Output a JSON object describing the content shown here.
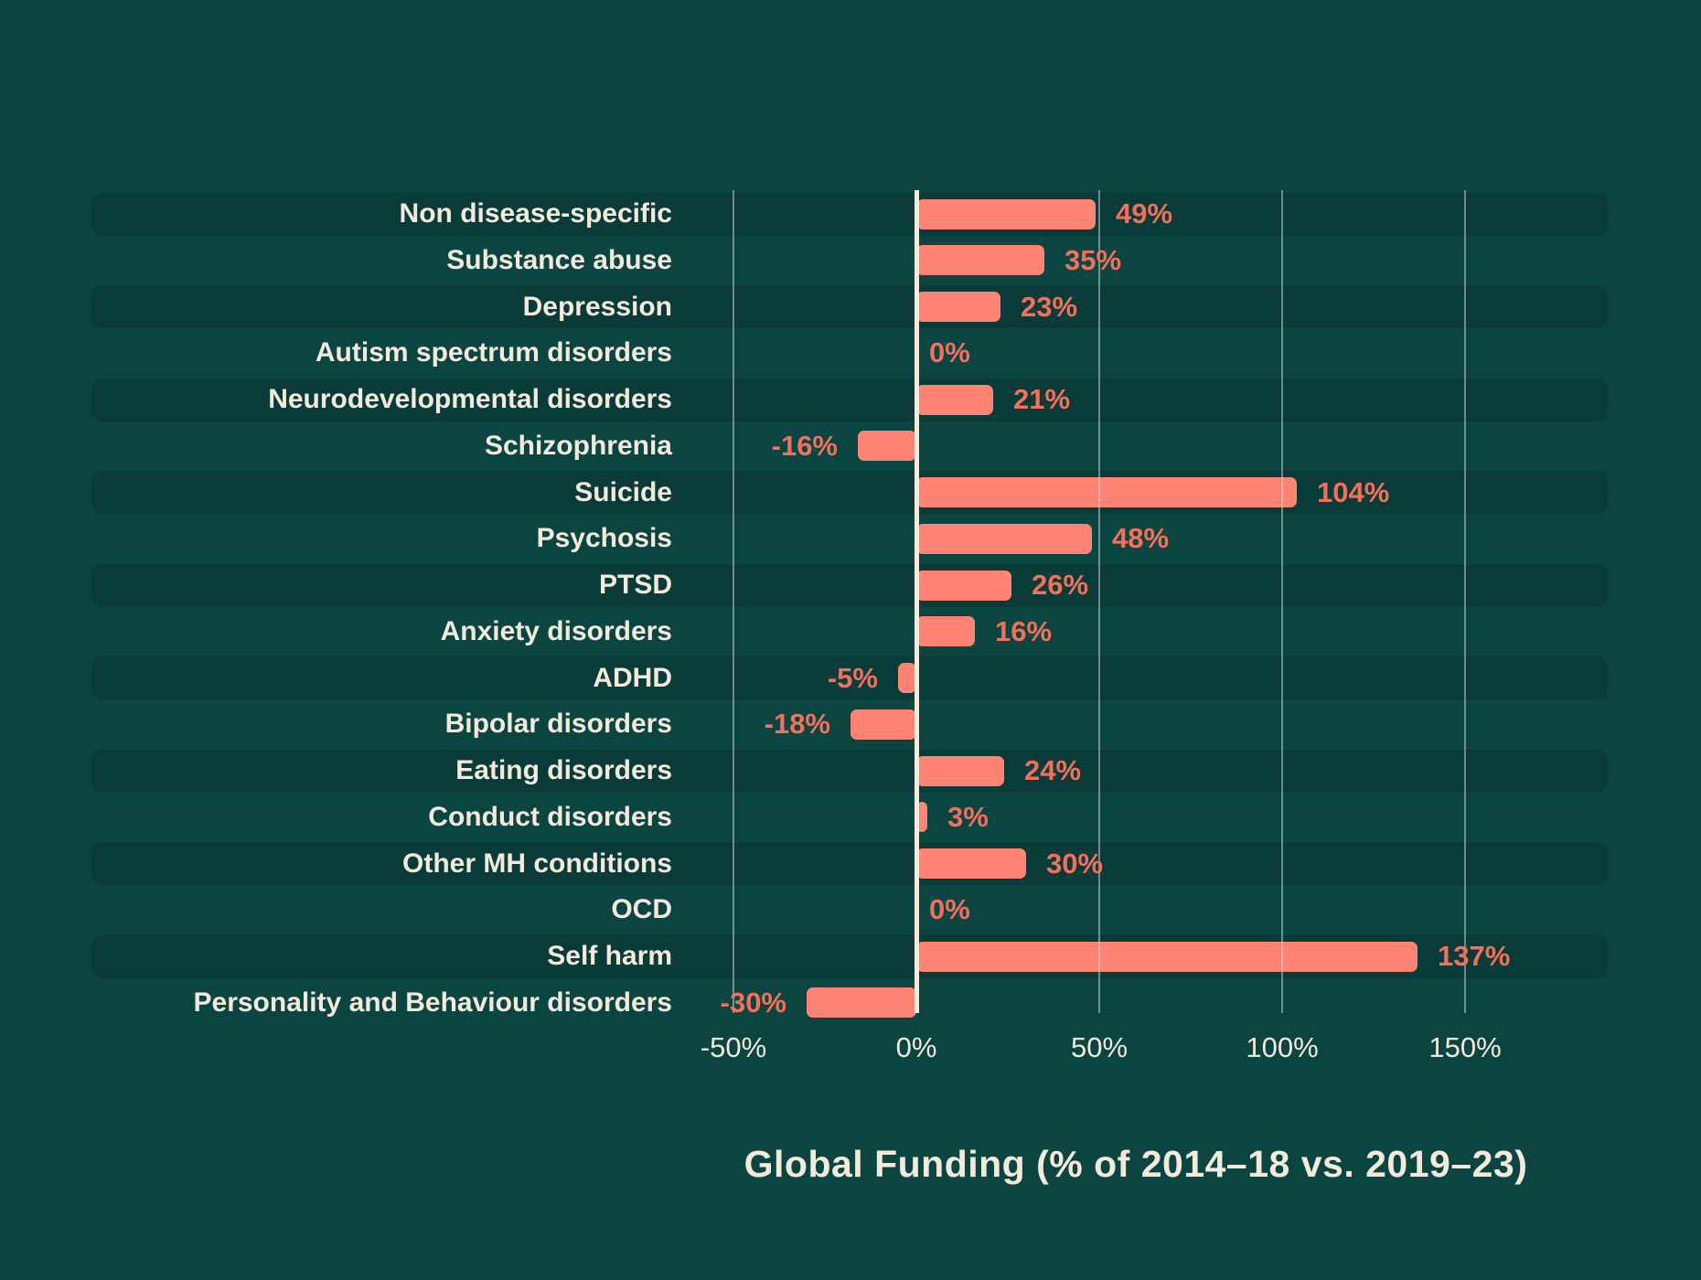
{
  "title": "Global Funding  (% of 2014–18 vs. 2019–23)",
  "colors": {
    "background": "#0B4541",
    "row_stripe": "#093B38",
    "bar": "#FF8473",
    "value_label": "#F4705C",
    "text": "#F3EADC",
    "gridline": "rgba(213,226,221,0.50)",
    "zero_line": "#F4ECDE"
  },
  "chart_data": {
    "type": "bar",
    "orientation": "horizontal",
    "title": "Global Funding  (% of 2014–18 vs. 2019–23)",
    "xlabel": "",
    "ylabel": "",
    "grid": "vertical",
    "legend": "none",
    "xlim": [
      -60,
      215
    ],
    "x_tick_values": [
      -50,
      0,
      50,
      100,
      150
    ],
    "x_tick_labels": [
      "-50%",
      "0%",
      "50%",
      "100%",
      "150%"
    ],
    "categories": [
      "Non disease-specific",
      "Substance abuse",
      "Depression",
      "Autism spectrum disorders",
      "Neurodevelopmental disorders",
      "Schizophrenia",
      "Suicide",
      "Psychosis",
      "PTSD",
      "Anxiety disorders",
      "ADHD",
      "Bipolar disorders",
      "Eating disorders",
      "Conduct disorders",
      "Other MH conditions",
      "OCD",
      "Self harm",
      "Personality and Behaviour disorders"
    ],
    "values": [
      49,
      35,
      23,
      0,
      21,
      -16,
      104,
      48,
      26,
      16,
      -5,
      -18,
      24,
      3,
      30,
      0,
      137,
      -30
    ],
    "value_labels": [
      "49%",
      "35%",
      "23%",
      "0%",
      "21%",
      "-16%",
      "104%",
      "48%",
      "26%",
      "16%",
      "-5%",
      "-18%",
      "24%",
      "3%",
      "30%",
      "0%",
      "137%",
      "-30%"
    ]
  }
}
